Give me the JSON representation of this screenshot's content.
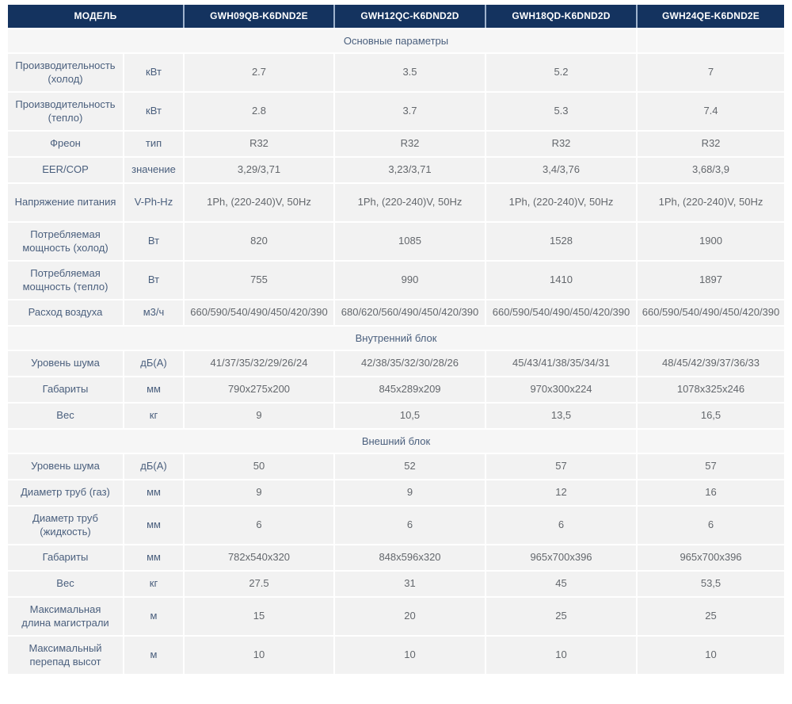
{
  "colors": {
    "header_bg": "#14335f",
    "header_text": "#ffffff",
    "header_divider": "#9fb3cd",
    "row_bg": "#f2f2f2",
    "section_bg": "#f6f6f6",
    "label_text": "#4a5f7d",
    "value_text": "#63676c",
    "page_bg": "#ffffff"
  },
  "table": {
    "header": {
      "model_label": "МОДЕЛЬ",
      "models": [
        "GWH09QB-K6DND2E",
        "GWH12QC-K6DND2D",
        "GWH18QD-K6DND2D",
        "GWH24QE-K6DND2E"
      ]
    },
    "rows": [
      {
        "type": "section",
        "label": "Основные параметры"
      },
      {
        "type": "param",
        "tall": true,
        "label": "Производительность (холод)",
        "unit": "кВт",
        "values": [
          "2.7",
          "3.5",
          "5.2",
          "7"
        ]
      },
      {
        "type": "param",
        "tall": true,
        "label": "Производительность (тепло)",
        "unit": "кВт",
        "values": [
          "2.8",
          "3.7",
          "5.3",
          "7.4"
        ]
      },
      {
        "type": "param",
        "tall": false,
        "label": "Фреон",
        "unit": "тип",
        "values": [
          "R32",
          "R32",
          "R32",
          "R32"
        ]
      },
      {
        "type": "param",
        "tall": false,
        "label": "EER/COP",
        "unit": "значение",
        "values": [
          "3,29/3,71",
          "3,23/3,71",
          "3,4/3,76",
          "3,68/3,9"
        ]
      },
      {
        "type": "param",
        "tall": true,
        "label": "Напряжение питания",
        "unit": "V-Ph-Hz",
        "values": [
          "1Ph, (220-240)V, 50Hz",
          "1Ph, (220-240)V, 50Hz",
          "1Ph, (220-240)V, 50Hz",
          "1Ph, (220-240)V, 50Hz"
        ]
      },
      {
        "type": "param",
        "tall": true,
        "label": "Потребляемая мощность (холод)",
        "unit": "Вт",
        "values": [
          "820",
          "1085",
          "1528",
          "1900"
        ]
      },
      {
        "type": "param",
        "tall": true,
        "label": "Потребляемая мощность (тепло)",
        "unit": "Вт",
        "values": [
          "755",
          "990",
          "1410",
          "1897"
        ]
      },
      {
        "type": "param",
        "tall": false,
        "label": "Расход воздуха",
        "unit": "м3/ч",
        "values": [
          "660/590/540/490/450/420/390",
          "680/620/560/490/450/420/390",
          "660/590/540/490/450/420/390",
          "660/590/540/490/450/420/390"
        ]
      },
      {
        "type": "section",
        "label": "Внутренний блок"
      },
      {
        "type": "param",
        "tall": false,
        "label": "Уровень шума",
        "unit": "дБ(А)",
        "values": [
          "41/37/35/32/29/26/24",
          "42/38/35/32/30/28/26",
          "45/43/41/38/35/34/31",
          "48/45/42/39/37/36/33"
        ]
      },
      {
        "type": "param",
        "tall": false,
        "label": "Габариты",
        "unit": "мм",
        "values": [
          "790x275x200",
          "845x289x209",
          "970x300x224",
          "1078x325x246"
        ]
      },
      {
        "type": "param",
        "tall": false,
        "label": "Вес",
        "unit": "кг",
        "values": [
          "9",
          "10,5",
          "13,5",
          "16,5"
        ]
      },
      {
        "type": "section",
        "label": "Внешний блок"
      },
      {
        "type": "param",
        "tall": false,
        "label": "Уровень шума",
        "unit": "дБ(А)",
        "values": [
          "50",
          "52",
          "57",
          "57"
        ]
      },
      {
        "type": "param",
        "tall": false,
        "label": "Диаметр труб (газ)",
        "unit": "мм",
        "values": [
          "9",
          "9",
          "12",
          "16"
        ]
      },
      {
        "type": "param",
        "tall": true,
        "label": "Диаметр труб (жидкость)",
        "unit": "мм",
        "values": [
          "6",
          "6",
          "6",
          "6"
        ]
      },
      {
        "type": "param",
        "tall": false,
        "label": "Габариты",
        "unit": "мм",
        "values": [
          "782x540x320",
          "848x596x320",
          "965x700x396",
          "965x700x396"
        ]
      },
      {
        "type": "param",
        "tall": false,
        "label": "Вес",
        "unit": "кг",
        "values": [
          "27.5",
          "31",
          "45",
          "53,5"
        ]
      },
      {
        "type": "param",
        "tall": true,
        "label": "Максимальная длина магистрали",
        "unit": "м",
        "values": [
          "15",
          "20",
          "25",
          "25"
        ]
      },
      {
        "type": "param",
        "tall": true,
        "label": "Максимальный перепад высот",
        "unit": "м",
        "values": [
          "10",
          "10",
          "10",
          "10"
        ]
      }
    ]
  }
}
